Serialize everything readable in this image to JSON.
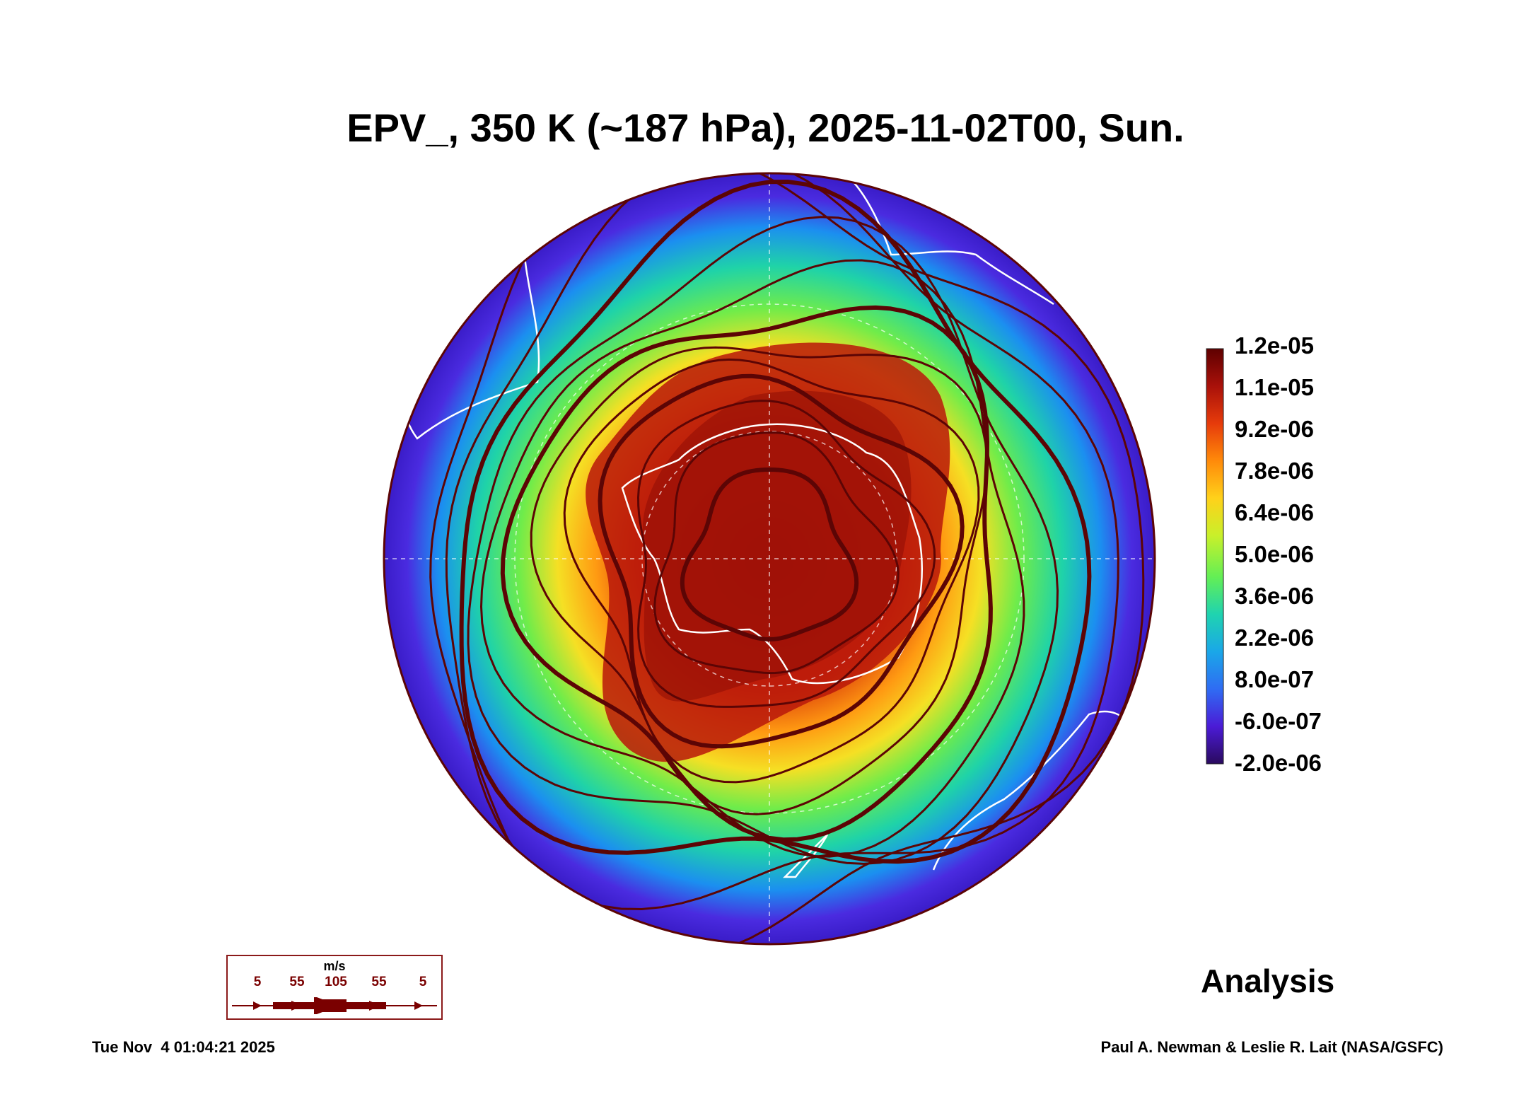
{
  "title": "EPV_, 350 K (~187 hPa), 2025-11-02T00, Sun.",
  "colorbar": {
    "labels": [
      "1.2e-05",
      "1.1e-05",
      "9.2e-06",
      "7.8e-06",
      "6.4e-06",
      "5.0e-06",
      "3.6e-06",
      "2.2e-06",
      "8.0e-07",
      "-6.0e-07",
      "-2.0e-06"
    ],
    "colors": [
      "#2a0a5e",
      "#4b1bd6",
      "#2f6cf3",
      "#1aa7e8",
      "#1fd3b0",
      "#63ef55",
      "#c9f02a",
      "#ffd11a",
      "#ff8a0a",
      "#e63b0b",
      "#a9110a",
      "#5e0000"
    ]
  },
  "map": {
    "projection": "south polar stereographic",
    "field_colors": {
      "low": "#3f22e0",
      "mid": "#22e06a",
      "high": "#c51f06"
    },
    "streamline_color": "#5c0505",
    "coastline_color": "#ffffff"
  },
  "wind_legend": {
    "unit": "m/s",
    "values": [
      "5",
      "55",
      "105",
      "55",
      "5"
    ]
  },
  "label_analysis": "Analysis",
  "footer": {
    "timestamp": "Tue Nov  4 01:04:21 2025",
    "credit": "Paul A. Newman & Leslie R. Lait (NASA/GSFC)"
  }
}
